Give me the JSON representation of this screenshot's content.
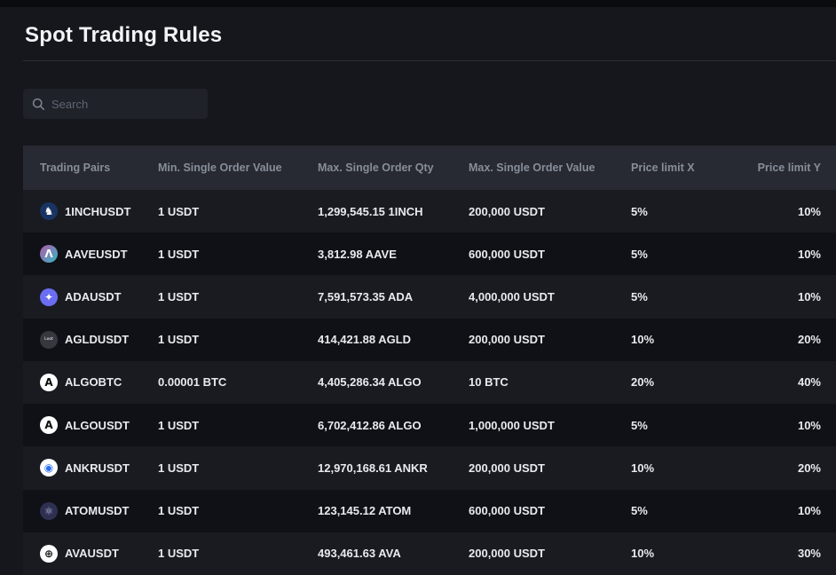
{
  "page": {
    "title": "Spot Trading Rules"
  },
  "search": {
    "placeholder": "Search"
  },
  "colors": {
    "page_bg": "#16171c",
    "top_strip": "#0a0b0d",
    "header_bg": "#272a32",
    "header_text": "#878e9a",
    "row_light": "#191b21",
    "row_dark": "#101116",
    "cell_text": "#e9eaee",
    "divider": "#2b2e35",
    "search_bg": "#1f2228",
    "placeholder_text": "#5e6673"
  },
  "table": {
    "columns": [
      {
        "label": "Trading Pairs",
        "align": "left"
      },
      {
        "label": "Min. Single Order Value",
        "align": "left"
      },
      {
        "label": "Max. Single Order Qty",
        "align": "left"
      },
      {
        "label": "Max. Single Order Value",
        "align": "left"
      },
      {
        "label": "Price limit X",
        "align": "left"
      },
      {
        "label": "Price limit Y",
        "align": "right"
      }
    ],
    "rows": [
      {
        "pair": "1INCHUSDT",
        "icon": {
          "name": "1inch-coin-icon",
          "glyph": "♞",
          "bg": "#183462",
          "fg": "#ffffff"
        },
        "min_value": "1 USDT",
        "max_qty": "1,299,545.15 1INCH",
        "max_value": "200,000 USDT",
        "limit_x": "5%",
        "limit_y": "10%"
      },
      {
        "pair": "AAVEUSDT",
        "icon": {
          "name": "aave-coin-icon",
          "glyph": "Λ",
          "bg": "linear-gradient(135deg,#b558a8,#31b8c4)",
          "fg": "#ffffff"
        },
        "min_value": "1 USDT",
        "max_qty": "3,812.98 AAVE",
        "max_value": "600,000 USDT",
        "limit_x": "5%",
        "limit_y": "10%"
      },
      {
        "pair": "ADAUSDT",
        "icon": {
          "name": "ada-coin-icon",
          "glyph": "✦",
          "bg": "#6b6df2",
          "fg": "#ffffff"
        },
        "min_value": "1 USDT",
        "max_qty": "7,591,573.35 ADA",
        "max_value": "4,000,000 USDT",
        "limit_x": "5%",
        "limit_y": "10%"
      },
      {
        "pair": "AGLDUSDT",
        "icon": {
          "name": "agld-coin-icon",
          "glyph": "Loot",
          "bg": "#35383f",
          "fg": "#ffffff",
          "tiny": true
        },
        "min_value": "1 USDT",
        "max_qty": "414,421.88 AGLD",
        "max_value": "200,000 USDT",
        "limit_x": "10%",
        "limit_y": "20%"
      },
      {
        "pair": "ALGOBTC",
        "icon": {
          "name": "algo-coin-icon",
          "glyph": "A",
          "bg": "#ffffff",
          "fg": "#0b0c0e"
        },
        "min_value": "0.00001 BTC",
        "max_qty": "4,405,286.34 ALGO",
        "max_value": "10 BTC",
        "limit_x": "20%",
        "limit_y": "40%"
      },
      {
        "pair": "ALGOUSDT",
        "icon": {
          "name": "algo-coin-icon",
          "glyph": "A",
          "bg": "#ffffff",
          "fg": "#0b0c0e"
        },
        "min_value": "1 USDT",
        "max_qty": "6,702,412.86 ALGO",
        "max_value": "1,000,000 USDT",
        "limit_x": "5%",
        "limit_y": "10%"
      },
      {
        "pair": "ANKRUSDT",
        "icon": {
          "name": "ankr-coin-icon",
          "glyph": "◉",
          "bg": "#ffffff",
          "fg": "#2a6ff0"
        },
        "min_value": "1 USDT",
        "max_qty": "12,970,168.61 ANKR",
        "max_value": "200,000 USDT",
        "limit_x": "10%",
        "limit_y": "20%"
      },
      {
        "pair": "ATOMUSDT",
        "icon": {
          "name": "atom-coin-icon",
          "glyph": "⚛",
          "bg": "#2d3050",
          "fg": "#b6b9e0"
        },
        "min_value": "1 USDT",
        "max_qty": "123,145.12 ATOM",
        "max_value": "600,000 USDT",
        "limit_x": "5%",
        "limit_y": "10%"
      },
      {
        "pair": "AVAUSDT",
        "icon": {
          "name": "ava-coin-icon",
          "glyph": "⊕",
          "bg": "#ffffff",
          "fg": "#15161a"
        },
        "min_value": "1 USDT",
        "max_qty": "493,461.63 AVA",
        "max_value": "200,000 USDT",
        "limit_x": "10%",
        "limit_y": "30%"
      }
    ]
  }
}
